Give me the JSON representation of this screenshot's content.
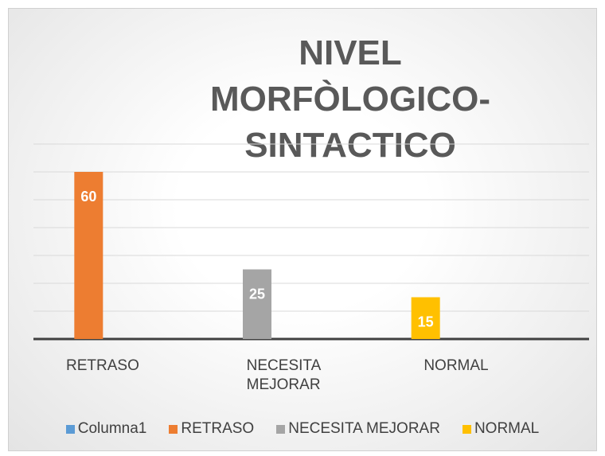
{
  "chart_data": {
    "type": "bar",
    "title": "NIVEL MORFÒLOGICO- SINTACTICO",
    "categories": [
      "RETRASO",
      "NECESITA MEJORAR",
      "NORMAL"
    ],
    "series": [
      {
        "name": "Columna1",
        "color": "#5b9bd5",
        "values": [
          null,
          null,
          null
        ]
      },
      {
        "name": "RETRASO",
        "color": "#ed7d31",
        "values": [
          60,
          null,
          null
        ]
      },
      {
        "name": "NECESITA MEJORAR",
        "color": "#a5a5a5",
        "values": [
          null,
          25,
          null
        ]
      },
      {
        "name": "NORMAL",
        "color": "#ffc000",
        "values": [
          null,
          null,
          15
        ]
      }
    ],
    "ylim": [
      0,
      70
    ],
    "yticks": [
      0,
      10,
      20,
      30,
      40,
      50,
      60,
      70
    ],
    "grid": true,
    "legend": "bottom"
  }
}
